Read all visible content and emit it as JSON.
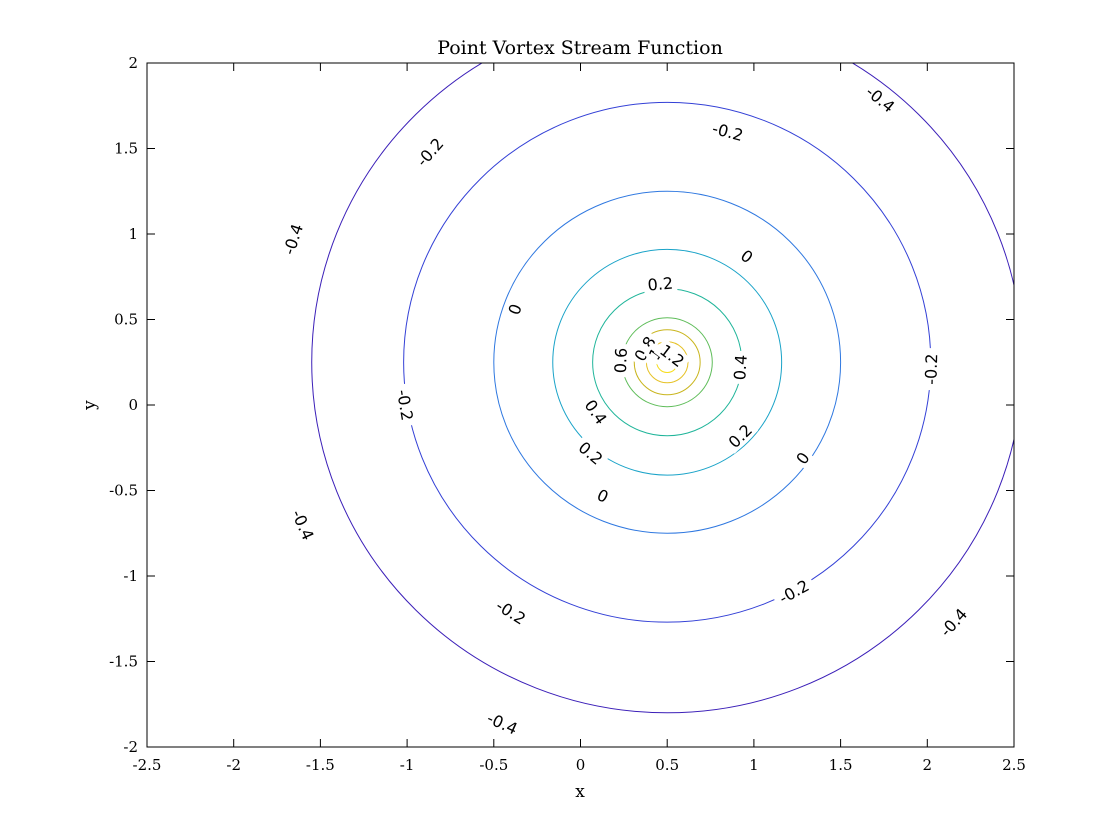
{
  "chart_data": {
    "type": "contour",
    "title": "Point Vortex Stream Function",
    "xlabel": "x",
    "ylabel": "y",
    "xlim": [
      -2.5,
      2.5
    ],
    "ylim": [
      -2,
      2
    ],
    "xticks": [
      -2.5,
      -2,
      -1.5,
      -1,
      -0.5,
      0,
      0.5,
      1,
      1.5,
      2,
      2.5
    ],
    "yticks": [
      -2,
      -1.5,
      -1,
      -0.5,
      0,
      0.5,
      1,
      1.5,
      2
    ],
    "xtick_labels": [
      "-2.5",
      "-2",
      "-1.5",
      "-1",
      "-0.5",
      "0",
      "0.5",
      "1",
      "1.5",
      "2",
      "2.5"
    ],
    "ytick_labels": [
      "-2",
      "-1.5",
      "-1",
      "-0.5",
      "0",
      "0.5",
      "1",
      "1.5",
      "2"
    ],
    "vortex_center": {
      "x": 0.5,
      "y": 0.25
    },
    "grid": false,
    "levels": [
      {
        "value": -0.4,
        "label": "-0.4",
        "radius": 2.05,
        "color": "#3b1fb8"
      },
      {
        "value": -0.2,
        "label": "-0.2",
        "radius": 1.52,
        "color": "#3340d6"
      },
      {
        "value": 0,
        "label": "0",
        "radius": 1.0,
        "color": "#2f78e0"
      },
      {
        "value": 0.2,
        "label": "0.2",
        "radius": 0.66,
        "color": "#1aa3c8"
      },
      {
        "value": 0.4,
        "label": "0.4",
        "radius": 0.43,
        "color": "#20b59a"
      },
      {
        "value": 0.6,
        "label": "0.6",
        "radius": 0.26,
        "color": "#5fbd5a"
      },
      {
        "value": 0.8,
        "label": "0.8",
        "radius": 0.19,
        "color": "#c9b51d"
      },
      {
        "value": 1.0,
        "label": "1",
        "radius": 0.12,
        "color": "#e6c227"
      },
      {
        "value": 1.2,
        "label": "1.2",
        "radius": 0.06,
        "color": "#f6dd1c"
      }
    ],
    "contour_labels": [
      {
        "text": "-0.4",
        "x": 1.73,
        "y": 1.79
      },
      {
        "text": "-0.4",
        "x": -1.66,
        "y": 0.97
      },
      {
        "text": "-0.4",
        "x": -1.6,
        "y": -0.7
      },
      {
        "text": "-0.4",
        "x": -0.45,
        "y": -1.86
      },
      {
        "text": "-0.4",
        "x": 2.15,
        "y": -1.27
      },
      {
        "text": "-0.2",
        "x": 0.85,
        "y": 1.6
      },
      {
        "text": "-0.2",
        "x": -0.87,
        "y": 1.48
      },
      {
        "text": "-0.2",
        "x": -1.01,
        "y": 0.0
      },
      {
        "text": "-0.2",
        "x": -0.4,
        "y": -1.21
      },
      {
        "text": "-0.2",
        "x": 1.23,
        "y": -1.09
      },
      {
        "text": "-0.2",
        "x": 2.02,
        "y": 0.21
      },
      {
        "text": "0",
        "x": 0.96,
        "y": 0.87
      },
      {
        "text": "0",
        "x": -0.38,
        "y": 0.56
      },
      {
        "text": "0",
        "x": 0.13,
        "y": -0.53
      },
      {
        "text": "0",
        "x": 1.28,
        "y": -0.31
      },
      {
        "text": "0.2",
        "x": 0.46,
        "y": 0.71
      },
      {
        "text": "0.2",
        "x": 0.06,
        "y": -0.28
      },
      {
        "text": "0.2",
        "x": 0.92,
        "y": -0.18
      },
      {
        "text": "0.4",
        "x": 0.09,
        "y": -0.04
      },
      {
        "text": "0.4",
        "x": 0.92,
        "y": 0.22
      },
      {
        "text": "0.6",
        "x": 0.23,
        "y": 0.26
      },
      {
        "text": "0.8",
        "x": 0.37,
        "y": 0.33
      },
      {
        "text": "1",
        "x": 0.43,
        "y": 0.3
      },
      {
        "text": "1.2",
        "x": 0.53,
        "y": 0.29
      }
    ]
  }
}
